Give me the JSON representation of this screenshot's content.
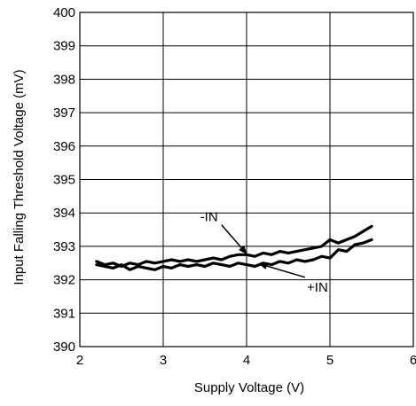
{
  "chart_data": {
    "type": "line",
    "xlabel": "Supply Voltage (V)",
    "ylabel": "Input Falling Threshold Voltage (mV)",
    "xlim": [
      2,
      6
    ],
    "ylim": [
      390,
      400
    ],
    "x_ticks": [
      "2",
      "3",
      "4",
      "5",
      "6"
    ],
    "y_ticks": [
      "390",
      "391",
      "392",
      "393",
      "394",
      "395",
      "396",
      "397",
      "398",
      "399",
      "400"
    ],
    "grid": true,
    "series": [
      {
        "name": "-IN",
        "x": [
          2.2,
          2.3,
          2.4,
          2.5,
          2.6,
          2.7,
          2.8,
          2.9,
          3.0,
          3.1,
          3.2,
          3.3,
          3.4,
          3.5,
          3.6,
          3.7,
          3.8,
          3.9,
          4.0,
          4.1,
          4.2,
          4.3,
          4.4,
          4.5,
          4.6,
          4.7,
          4.8,
          4.9,
          5.0,
          5.1,
          5.2,
          5.3,
          5.4,
          5.5
        ],
        "y": [
          392.55,
          392.45,
          392.5,
          392.4,
          392.5,
          392.45,
          392.55,
          392.5,
          392.55,
          392.6,
          392.55,
          392.6,
          392.55,
          392.6,
          392.65,
          392.6,
          392.7,
          392.75,
          392.75,
          392.7,
          392.8,
          392.75,
          392.85,
          392.8,
          392.85,
          392.9,
          392.95,
          393.0,
          393.2,
          393.1,
          393.2,
          393.3,
          393.45,
          393.6
        ]
      },
      {
        "name": "+IN",
        "x": [
          2.2,
          2.3,
          2.4,
          2.5,
          2.6,
          2.7,
          2.8,
          2.9,
          3.0,
          3.1,
          3.2,
          3.3,
          3.4,
          3.5,
          3.6,
          3.7,
          3.8,
          3.9,
          4.0,
          4.1,
          4.2,
          4.3,
          4.4,
          4.5,
          4.6,
          4.7,
          4.8,
          4.9,
          5.0,
          5.1,
          5.2,
          5.3,
          5.4,
          5.5
        ],
        "y": [
          392.45,
          392.4,
          392.35,
          392.45,
          392.3,
          392.4,
          392.35,
          392.3,
          392.4,
          392.35,
          392.45,
          392.4,
          392.45,
          392.4,
          392.5,
          392.45,
          392.4,
          392.5,
          392.45,
          392.4,
          392.5,
          392.45,
          392.55,
          392.5,
          392.6,
          392.55,
          392.6,
          392.7,
          392.65,
          392.9,
          392.85,
          393.05,
          393.1,
          393.2
        ]
      }
    ],
    "annotations": [
      {
        "text": "-IN",
        "series": "-IN",
        "points_to_x": 4.0,
        "points_to_y": 392.78,
        "label_x": 3.55,
        "label_y": 393.75
      },
      {
        "text": "+IN",
        "series": "+IN",
        "points_to_x": 4.15,
        "points_to_y": 392.48,
        "label_x": 4.85,
        "label_y": 391.65
      }
    ]
  }
}
